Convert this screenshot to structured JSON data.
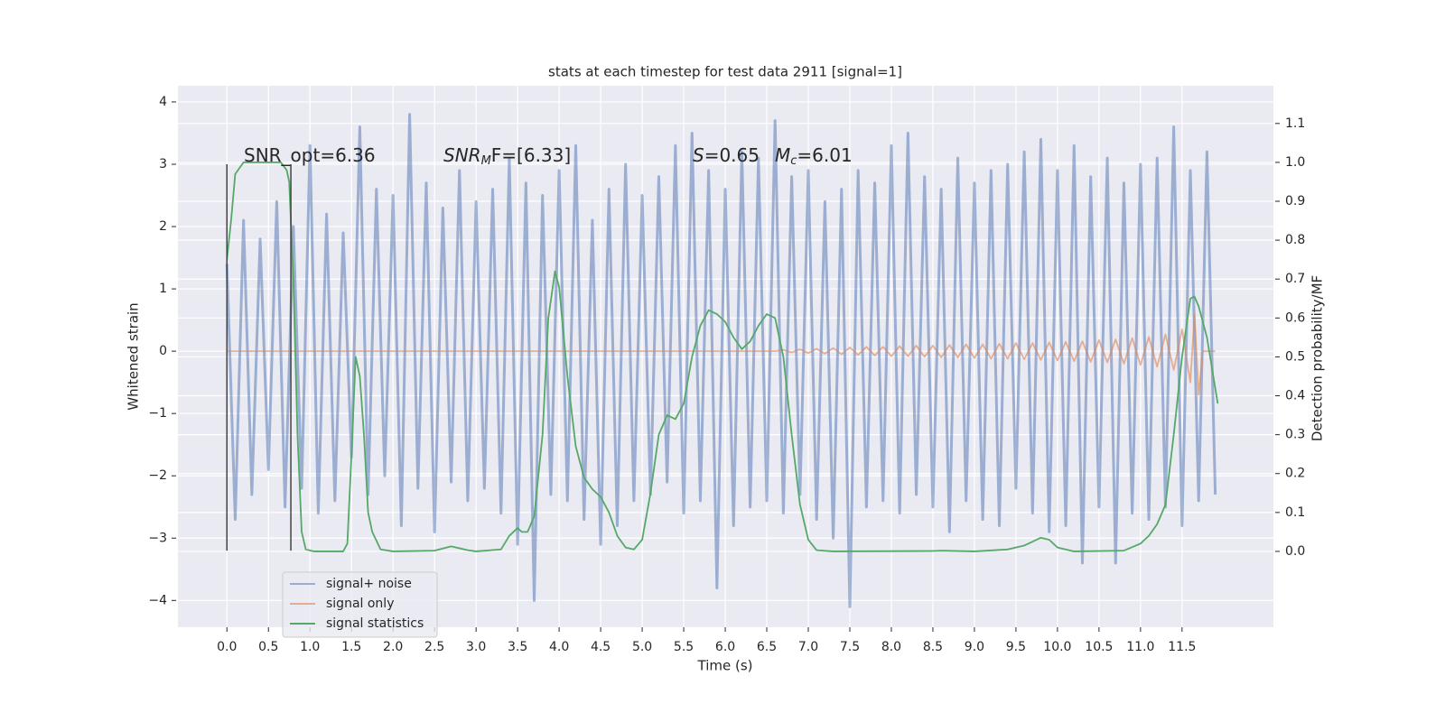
{
  "chart_data": {
    "type": "line",
    "title": "stats at each timestep for test data 2911 [signal=1]",
    "xlabel": "Time (s)",
    "ylabel": "Whitened strain",
    "y2label": "Detection probability/MF",
    "xlim": [
      -0.59,
      12.6
    ],
    "ylim": [
      -4.43,
      4.26
    ],
    "y2lim": [
      -0.195,
      1.197
    ],
    "xticks": [
      {
        "value": 0,
        "label": "0.0"
      },
      0.5,
      {
        "value": 1,
        "label": "1.0"
      },
      1.5,
      {
        "value": 2,
        "label": "2.0"
      },
      2.5,
      {
        "value": 3,
        "label": "3.0"
      },
      3.5,
      {
        "value": 4,
        "label": "4.0"
      },
      4.5,
      {
        "value": 5,
        "label": "5.0"
      },
      5.5,
      {
        "value": 6,
        "label": "6.0"
      },
      6.5,
      {
        "value": 7,
        "label": "7.0"
      },
      7.5,
      {
        "value": 8,
        "label": "8.0"
      },
      8.5,
      {
        "value": 9,
        "label": "9.0"
      },
      9.5,
      {
        "value": 10,
        "label": "10.0"
      },
      10.5,
      {
        "value": 11,
        "label": "11.0"
      },
      11.5
    ],
    "yticks": [
      {
        "value": -4,
        "label": "−4"
      },
      {
        "value": -3,
        "label": "−3"
      },
      {
        "value": -2,
        "label": "−2"
      },
      {
        "value": -1,
        "label": "−1"
      },
      0,
      1,
      2,
      3,
      4
    ],
    "y2ticks": [
      {
        "value": 0,
        "label": "0.0"
      },
      0.1,
      0.2,
      0.3,
      0.4,
      0.5,
      0.6,
      0.7,
      0.8,
      0.9,
      {
        "value": 1,
        "label": "1.0"
      },
      1.1
    ],
    "grid": true,
    "legend": "lower left",
    "series": [
      {
        "name": "signal+ noise",
        "color": "#4c72b0",
        "opacity": 0.5,
        "x": [
          0.0,
          0.1,
          0.2,
          0.3,
          0.4,
          0.5,
          0.6,
          0.7,
          0.8,
          0.9,
          1.0,
          1.1,
          1.2,
          1.3,
          1.4,
          1.5,
          1.6,
          1.7,
          1.8,
          1.9,
          2.0,
          2.1,
          2.2,
          2.3,
          2.4,
          2.5,
          2.6,
          2.7,
          2.8,
          2.9,
          3.0,
          3.1,
          3.2,
          3.3,
          3.4,
          3.5,
          3.6,
          3.7,
          3.8,
          3.9,
          4.0,
          4.1,
          4.2,
          4.3,
          4.4,
          4.5,
          4.6,
          4.7,
          4.8,
          4.9,
          5.0,
          5.1,
          5.2,
          5.3,
          5.4,
          5.5,
          5.6,
          5.7,
          5.8,
          5.9,
          6.0,
          6.1,
          6.2,
          6.3,
          6.4,
          6.5,
          6.6,
          6.7,
          6.8,
          6.9,
          7.0,
          7.1,
          7.2,
          7.3,
          7.4,
          7.5,
          7.6,
          7.7,
          7.8,
          7.9,
          8.0,
          8.1,
          8.2,
          8.3,
          8.4,
          8.5,
          8.6,
          8.7,
          8.8,
          8.9,
          9.0,
          9.1,
          9.2,
          9.3,
          9.4,
          9.5,
          9.6,
          9.7,
          9.8,
          9.9,
          10.0,
          10.1,
          10.2,
          10.3,
          10.4,
          10.5,
          10.6,
          10.7,
          10.8,
          10.9,
          11.0,
          11.1,
          11.2,
          11.3,
          11.4,
          11.5,
          11.6,
          11.7,
          11.8,
          11.9
        ],
        "values": [
          1.4,
          -2.7,
          2.1,
          -2.3,
          1.8,
          -1.9,
          2.4,
          -2.5,
          2.0,
          -2.2,
          3.3,
          -2.6,
          2.2,
          -2.4,
          1.9,
          -1.7,
          3.6,
          -2.3,
          2.6,
          -2.0,
          2.5,
          -2.8,
          3.8,
          -2.2,
          2.7,
          -2.9,
          2.3,
          -2.1,
          2.9,
          -2.4,
          2.4,
          -2.2,
          2.6,
          -2.6,
          3.1,
          -3.1,
          2.7,
          -4.0,
          2.5,
          -2.3,
          2.9,
          -2.4,
          3.3,
          -2.7,
          2.1,
          -3.1,
          2.6,
          -2.8,
          3.0,
          -2.4,
          2.5,
          -2.3,
          2.8,
          -2.1,
          3.3,
          -2.6,
          3.5,
          -2.4,
          2.9,
          -3.8,
          2.6,
          -2.8,
          3.2,
          -2.5,
          3.1,
          -2.4,
          3.7,
          -2.6,
          2.8,
          -2.3,
          2.9,
          -2.7,
          2.4,
          -3.0,
          2.6,
          -4.1,
          2.9,
          -2.5,
          2.7,
          -2.4,
          3.3,
          -2.6,
          3.5,
          -2.3,
          2.8,
          -2.5,
          2.6,
          -2.9,
          3.1,
          -2.4,
          2.7,
          -2.7,
          2.9,
          -2.8,
          3.0,
          -2.2,
          3.2,
          -2.6,
          3.4,
          -2.9,
          2.9,
          -2.8,
          3.3,
          -3.4,
          2.8,
          -2.5,
          3.1,
          -3.4,
          2.7,
          -2.6,
          3.0,
          -2.7,
          3.1,
          -2.5,
          3.6,
          -2.8,
          2.9,
          -2.4,
          3.2,
          -2.3
        ]
      },
      {
        "name": "signal only",
        "color": "#dd8452",
        "opacity": 0.6,
        "x": [
          0,
          6.6,
          6.7,
          6.8,
          6.9,
          7.0,
          7.1,
          7.2,
          7.3,
          7.4,
          7.5,
          7.6,
          7.7,
          7.8,
          7.9,
          8.0,
          8.1,
          8.2,
          8.3,
          8.4,
          8.5,
          8.6,
          8.7,
          8.8,
          8.9,
          9.0,
          9.1,
          9.2,
          9.3,
          9.4,
          9.5,
          9.6,
          9.7,
          9.8,
          9.9,
          10.0,
          10.1,
          10.2,
          10.3,
          10.4,
          10.5,
          10.6,
          10.7,
          10.8,
          10.9,
          11.0,
          11.1,
          11.2,
          11.3,
          11.4,
          11.5,
          11.6,
          11.65,
          11.7,
          11.75,
          11.9
        ],
        "values": [
          0,
          0,
          0.02,
          -0.02,
          0.03,
          -0.03,
          0.04,
          -0.04,
          0.05,
          -0.05,
          0.06,
          -0.06,
          0.07,
          -0.07,
          0.07,
          -0.08,
          0.08,
          -0.08,
          0.09,
          -0.09,
          0.09,
          -0.1,
          0.1,
          -0.1,
          0.11,
          -0.11,
          0.11,
          -0.12,
          0.12,
          -0.12,
          0.13,
          -0.13,
          0.13,
          -0.14,
          0.14,
          -0.15,
          0.15,
          -0.16,
          0.16,
          -0.17,
          0.18,
          -0.18,
          0.19,
          -0.2,
          0.21,
          -0.22,
          0.23,
          -0.25,
          0.27,
          -0.3,
          0.35,
          -0.5,
          0.6,
          -0.7,
          0,
          0
        ]
      },
      {
        "name": "signal statistics",
        "color": "#55a868",
        "opacity": 1,
        "axis": "y2",
        "x": [
          0.0,
          0.05,
          0.1,
          0.2,
          0.3,
          0.5,
          0.65,
          0.72,
          0.75,
          0.8,
          0.85,
          0.9,
          0.95,
          1.05,
          1.4,
          1.45,
          1.5,
          1.55,
          1.6,
          1.65,
          1.7,
          1.75,
          1.85,
          2.0,
          2.5,
          2.7,
          2.9,
          3.0,
          3.3,
          3.4,
          3.5,
          3.55,
          3.62,
          3.7,
          3.8,
          3.87,
          3.95,
          4.0,
          4.1,
          4.2,
          4.3,
          4.4,
          4.5,
          4.6,
          4.7,
          4.8,
          4.9,
          5.0,
          5.1,
          5.2,
          5.3,
          5.4,
          5.5,
          5.6,
          5.7,
          5.8,
          5.9,
          6.0,
          6.1,
          6.2,
          6.3,
          6.4,
          6.5,
          6.6,
          6.7,
          6.8,
          6.9,
          7.0,
          7.1,
          7.3,
          8.5,
          8.6,
          9.0,
          9.4,
          9.6,
          9.8,
          9.9,
          10.0,
          10.2,
          10.8,
          11.0,
          11.1,
          11.2,
          11.3,
          11.4,
          11.5,
          11.6,
          11.65,
          11.7,
          11.8,
          11.93
        ],
        "values": [
          0.75,
          0.85,
          0.97,
          1.0,
          1.0,
          1.0,
          1.0,
          0.98,
          0.95,
          0.7,
          0.3,
          0.05,
          0.005,
          0.0,
          0.0,
          0.02,
          0.25,
          0.5,
          0.45,
          0.3,
          0.1,
          0.05,
          0.005,
          0.0,
          0.002,
          0.013,
          0.003,
          0.0,
          0.005,
          0.04,
          0.06,
          0.05,
          0.05,
          0.09,
          0.3,
          0.6,
          0.72,
          0.68,
          0.45,
          0.27,
          0.19,
          0.16,
          0.14,
          0.1,
          0.04,
          0.01,
          0.005,
          0.03,
          0.15,
          0.3,
          0.35,
          0.34,
          0.38,
          0.5,
          0.58,
          0.62,
          0.61,
          0.59,
          0.55,
          0.52,
          0.54,
          0.58,
          0.61,
          0.6,
          0.5,
          0.3,
          0.12,
          0.03,
          0.003,
          0.0,
          0.001,
          0.002,
          0.0,
          0.005,
          0.015,
          0.035,
          0.03,
          0.01,
          0.0,
          0.002,
          0.02,
          0.04,
          0.07,
          0.12,
          0.3,
          0.5,
          0.65,
          0.655,
          0.63,
          0.55,
          0.38
        ]
      }
    ],
    "vlines": {
      "x": [
        0,
        0.77
      ],
      "y": [
        -3.2,
        3.0
      ],
      "color": "#444444"
    },
    "annotations": [
      {
        "parts": [
          "SNR_opt=6.36"
        ],
        "styles": [
          "normal"
        ]
      },
      {
        "parts": [
          "SNR",
          "M",
          "F=[6.33]"
        ],
        "styles": [
          "italic",
          "sub",
          "normal"
        ]
      },
      {
        "parts": [
          "S",
          "=0.65"
        ],
        "styles": [
          "italic",
          "normal"
        ]
      },
      {
        "parts": [
          "M",
          "c",
          "=6.01"
        ],
        "styles": [
          "italic",
          "sub",
          "normal"
        ]
      }
    ]
  }
}
